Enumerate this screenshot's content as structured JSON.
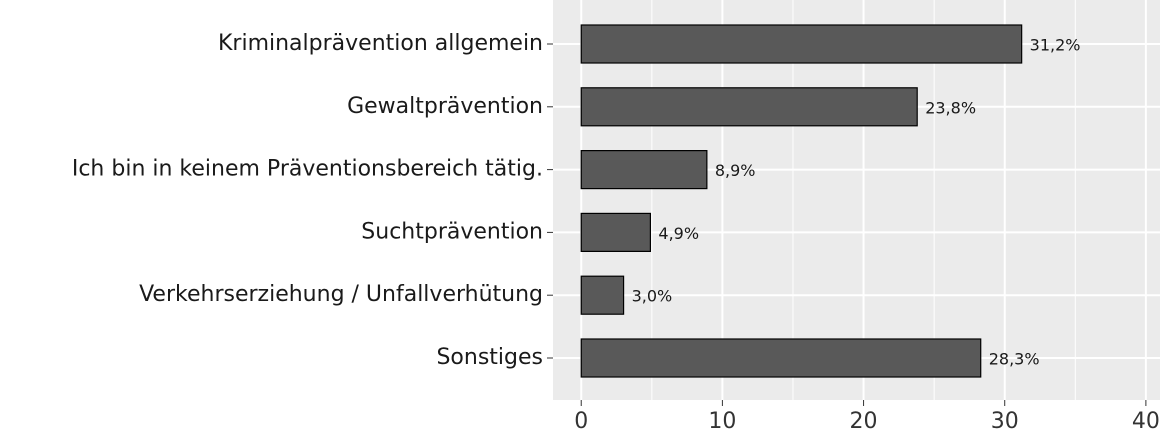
{
  "chart_data": {
    "type": "hbar",
    "categories": [
      "Kriminalprävention allgemein",
      "Gewaltprävention",
      "Ich bin in keinem Präventionsbereich tätig.",
      "Suchtprävention",
      "Verkehrserziehung / Unfallverhütung",
      "Sonstiges"
    ],
    "values": [
      31.2,
      23.8,
      8.9,
      4.9,
      3.0,
      28.3
    ],
    "value_labels": [
      "31,2%",
      "23,8%",
      "8,9%",
      "4,9%",
      "3,0%",
      "28,3%"
    ],
    "color": "#595959",
    "xlim": [
      -2,
      41
    ],
    "xticks": [
      0,
      10,
      20,
      30,
      40
    ],
    "xminor": [
      5,
      15,
      25,
      35
    ],
    "grid": true
  }
}
